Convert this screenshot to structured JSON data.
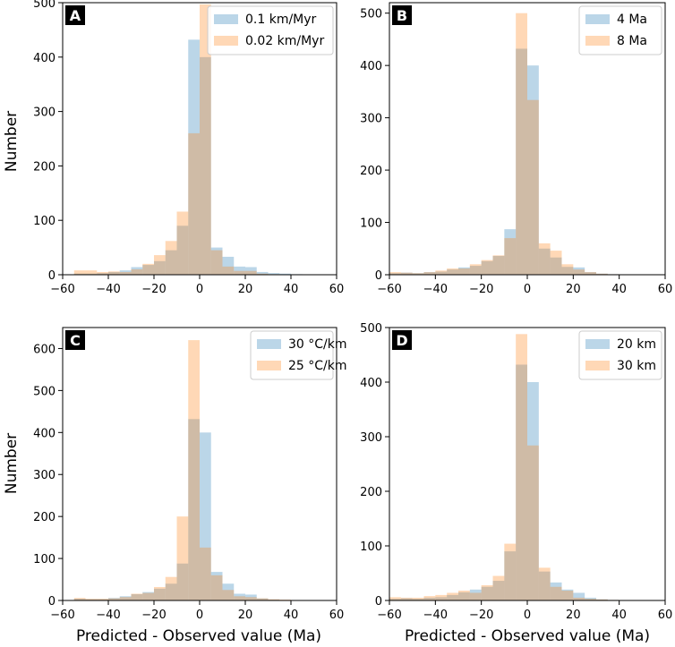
{
  "figure": {
    "ylabel": "Number",
    "xlabel": "Predicted - Observed value (Ma)",
    "colors": {
      "series_a": "#1f77b4",
      "series_b": "#ff7f0e",
      "alpha": 0.3
    }
  },
  "chart_data": [
    {
      "type": "bar",
      "panel": "A",
      "xlim": [
        -60,
        60
      ],
      "ylim": [
        0,
        500
      ],
      "xticks": [
        -60,
        -40,
        -20,
        0,
        20,
        40,
        60
      ],
      "yticks": [
        0,
        100,
        200,
        300,
        400,
        500
      ],
      "bin_edges": [
        -55,
        -50,
        -45,
        -40,
        -35,
        -30,
        -25,
        -20,
        -15,
        -10,
        -5,
        0,
        5,
        10,
        15,
        20,
        25,
        30,
        35,
        40,
        45
      ],
      "series": [
        {
          "name": "0.1 km/Myr",
          "values": [
            2,
            2,
            3,
            5,
            8,
            14,
            18,
            25,
            45,
            90,
            432,
            400,
            50,
            33,
            15,
            14,
            5,
            3,
            2,
            1
          ]
        },
        {
          "name": "0.02 km/Myr",
          "values": [
            8,
            8,
            5,
            6,
            5,
            10,
            20,
            36,
            62,
            116,
            260,
            497,
            45,
            15,
            7,
            7,
            2,
            1,
            0,
            0
          ]
        }
      ],
      "legend_position": "top-right"
    },
    {
      "type": "bar",
      "panel": "B",
      "xlim": [
        -60,
        60
      ],
      "ylim": [
        0,
        520
      ],
      "xticks": [
        -60,
        -40,
        -20,
        0,
        20,
        40,
        60
      ],
      "yticks": [
        0,
        100,
        200,
        300,
        400,
        500
      ],
      "bin_edges": [
        -60,
        -55,
        -50,
        -45,
        -40,
        -35,
        -30,
        -25,
        -20,
        -15,
        -10,
        -5,
        0,
        5,
        10,
        15,
        20,
        25,
        30,
        35,
        40
      ],
      "series": [
        {
          "name": "4 Ma",
          "values": [
            3,
            4,
            3,
            5,
            6,
            10,
            14,
            17,
            26,
            36,
            87,
            432,
            400,
            50,
            33,
            15,
            14,
            5,
            2,
            1
          ]
        },
        {
          "name": "8 Ma",
          "values": [
            5,
            4,
            3,
            5,
            8,
            12,
            12,
            20,
            28,
            37,
            70,
            500,
            334,
            60,
            46,
            20,
            10,
            5,
            2,
            1
          ]
        }
      ],
      "legend_position": "top-right"
    },
    {
      "type": "bar",
      "panel": "C",
      "xlim": [
        -60,
        60
      ],
      "ylim": [
        0,
        650
      ],
      "xticks": [
        -60,
        -40,
        -20,
        0,
        20,
        40,
        60
      ],
      "yticks": [
        0,
        100,
        200,
        300,
        400,
        500,
        600
      ],
      "bin_edges": [
        -55,
        -50,
        -45,
        -40,
        -35,
        -30,
        -25,
        -20,
        -15,
        -10,
        -5,
        0,
        5,
        10,
        15,
        20,
        25,
        30,
        35,
        40
      ],
      "series": [
        {
          "name": "30 °C/km",
          "values": [
            4,
            3,
            3,
            6,
            10,
            15,
            20,
            28,
            40,
            88,
            432,
            400,
            68,
            40,
            16,
            14,
            5,
            2,
            1
          ]
        },
        {
          "name": "25 °C/km",
          "values": [
            6,
            4,
            4,
            5,
            8,
            16,
            18,
            32,
            56,
            200,
            620,
            126,
            60,
            25,
            10,
            8,
            5,
            3,
            2
          ]
        }
      ],
      "legend_position": "top-right"
    },
    {
      "type": "bar",
      "panel": "D",
      "xlim": [
        -60,
        60
      ],
      "ylim": [
        0,
        500
      ],
      "xticks": [
        -60,
        -40,
        -20,
        0,
        20,
        40,
        60
      ],
      "yticks": [
        0,
        100,
        200,
        300,
        400,
        500
      ],
      "bin_edges": [
        -60,
        -55,
        -50,
        -45,
        -40,
        -35,
        -30,
        -25,
        -20,
        -15,
        -10,
        -5,
        0,
        5,
        10,
        15,
        20,
        25,
        30,
        35,
        40
      ],
      "series": [
        {
          "name": "20 km",
          "values": [
            3,
            4,
            3,
            5,
            6,
            10,
            15,
            20,
            25,
            36,
            90,
            432,
            400,
            53,
            33,
            20,
            14,
            5,
            2,
            1
          ]
        },
        {
          "name": "30 km",
          "values": [
            6,
            5,
            5,
            8,
            10,
            14,
            18,
            14,
            28,
            45,
            104,
            488,
            284,
            60,
            25,
            18,
            5,
            3,
            2,
            1
          ]
        }
      ],
      "legend_position": "top-right"
    }
  ]
}
